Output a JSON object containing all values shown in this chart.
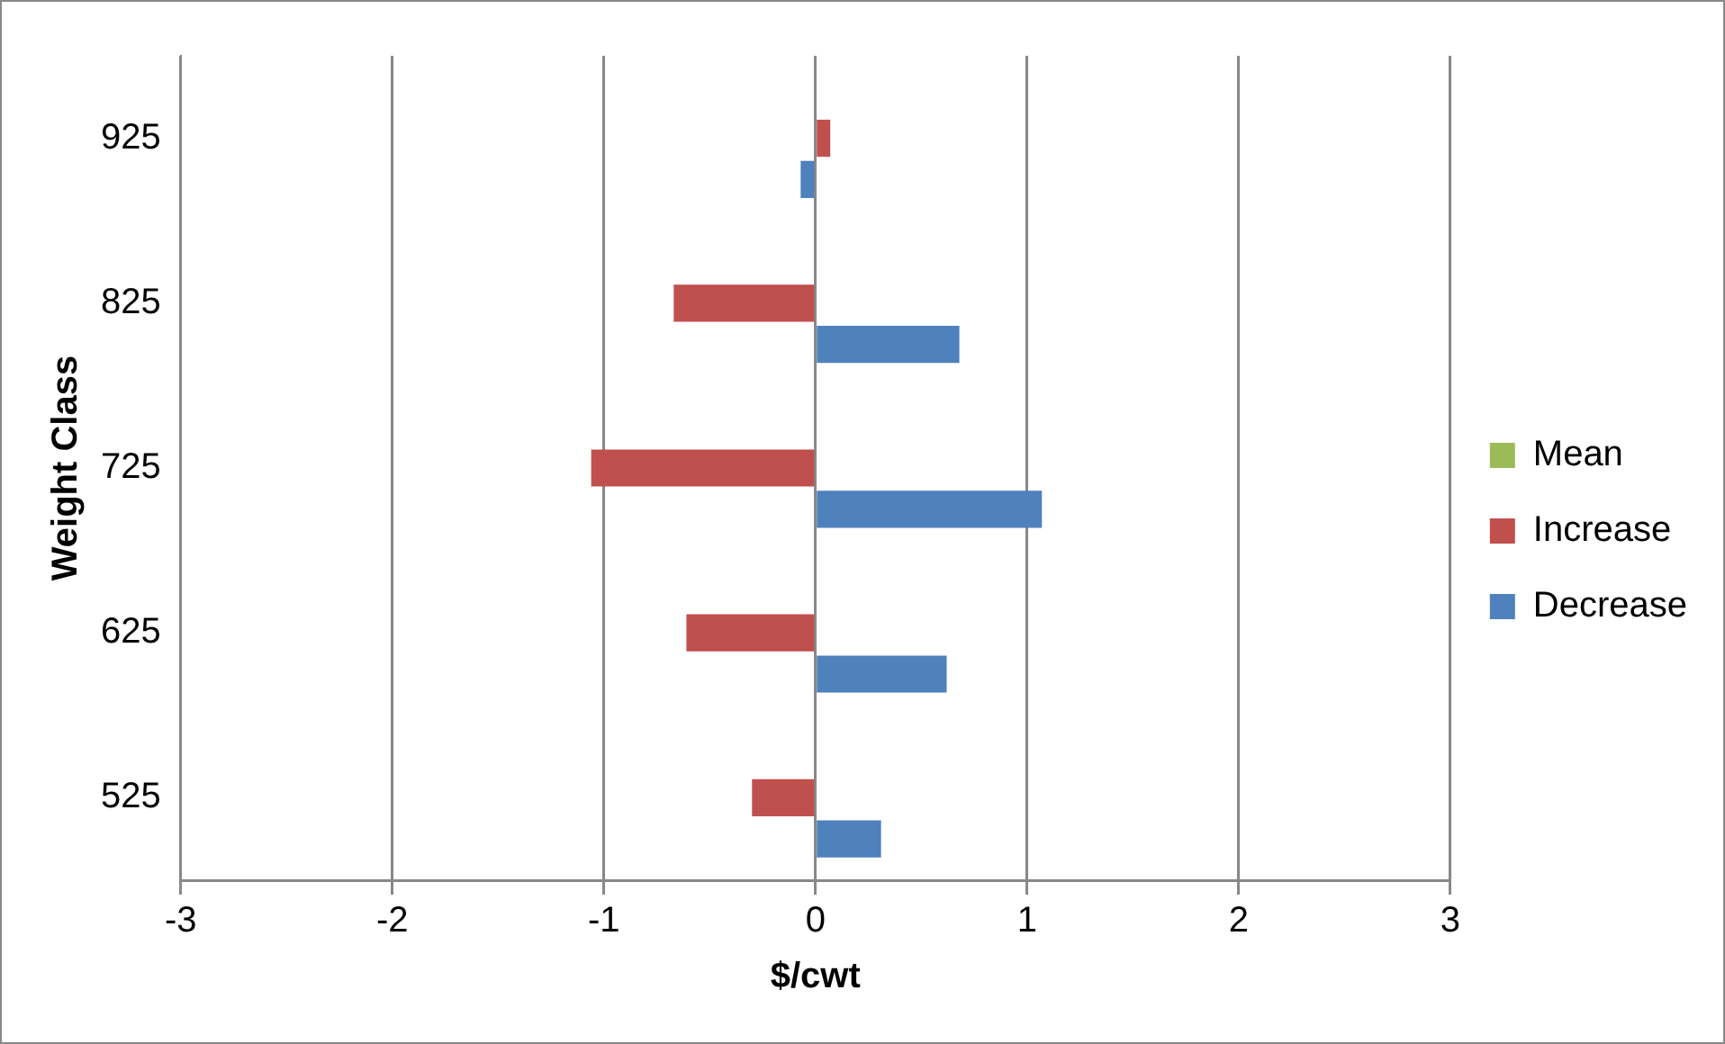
{
  "chart_data": {
    "type": "bar",
    "orientation": "horizontal",
    "xlabel": "$/cwt",
    "ylabel": "Weight Class",
    "categories": [
      "925",
      "825",
      "725",
      "625",
      "525"
    ],
    "series": [
      {
        "name": "Mean",
        "color": "#9bbb59",
        "values": [
          0,
          0,
          0,
          0,
          0
        ]
      },
      {
        "name": "Increase",
        "color": "#c0504d",
        "values": [
          0.07,
          -0.67,
          -1.06,
          -0.61,
          -0.3
        ]
      },
      {
        "name": "Decrease",
        "color": "#4f81bd",
        "values": [
          -0.07,
          0.68,
          1.07,
          0.62,
          0.31
        ]
      }
    ],
    "xlim": [
      -3,
      3
    ],
    "xticks": [
      -3,
      -2,
      -1,
      0,
      1,
      2,
      3
    ],
    "grid": "x",
    "legend": "right"
  }
}
